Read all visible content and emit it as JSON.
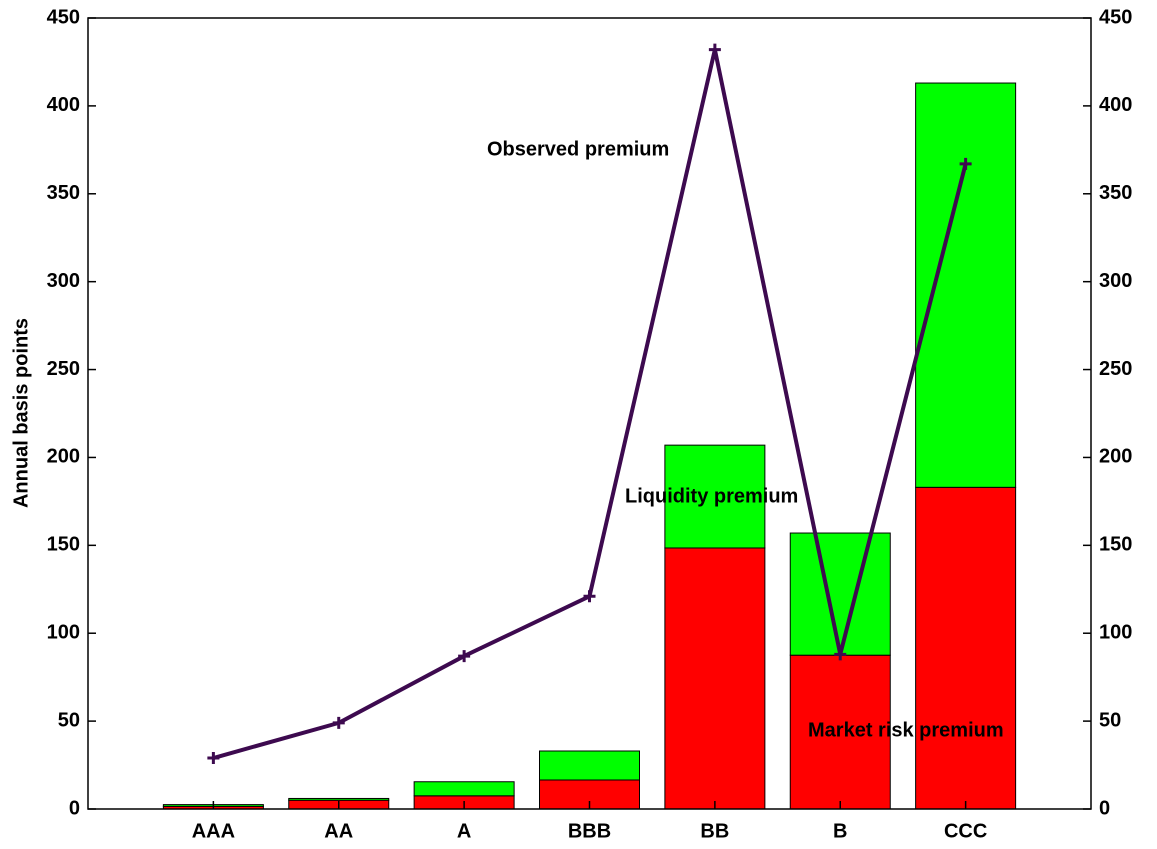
{
  "chart_data": {
    "type": "bar",
    "stacked": true,
    "y_label": "Annual basis points",
    "categories": [
      "AAA",
      "AA",
      "A",
      "BBB",
      "BB",
      "B",
      "CCC"
    ],
    "series": [
      {
        "name": "Market risk premium",
        "color": "#ff0000",
        "values": [
          1.5,
          5,
          7.5,
          16.5,
          148.5,
          87.5,
          183
        ]
      },
      {
        "name": "Liquidity premium",
        "color": "#00ff00",
        "values": [
          1,
          1,
          8,
          16.5,
          58.5,
          69.5,
          230
        ]
      },
      {
        "name": "Observed premium",
        "type": "line",
        "axis": "y2",
        "color": "#3d0a4f",
        "values": [
          29,
          49,
          87,
          121,
          432,
          88,
          367
        ]
      }
    ],
    "ylim": [
      0,
      450
    ],
    "yticks": [
      0,
      50,
      100,
      150,
      200,
      250,
      300,
      350,
      400,
      450
    ],
    "y2lim": [
      0,
      450
    ],
    "y2ticks": [
      0,
      50,
      100,
      150,
      200,
      250,
      300,
      350,
      400,
      450
    ]
  }
}
